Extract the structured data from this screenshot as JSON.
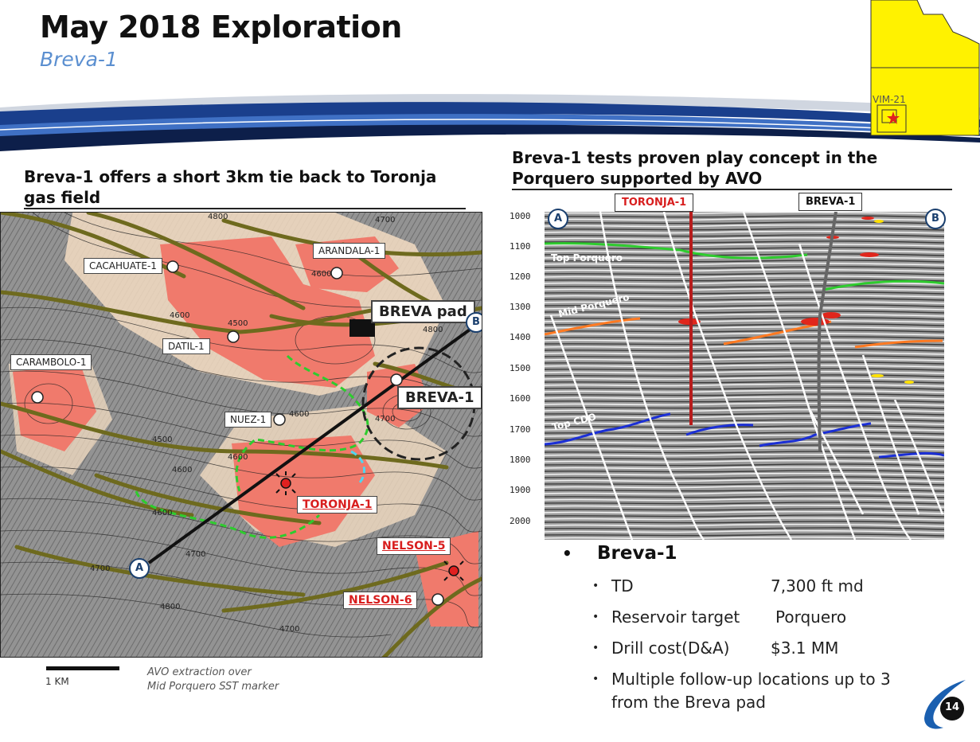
{
  "header": {
    "title": "May 2018 Exploration",
    "subtitle": "Breva-1"
  },
  "inset_map": {
    "block_label": "VIM-21",
    "fill_color": "#fff200"
  },
  "left_section": {
    "heading": "Breva-1 offers a short 3km tie back to Toronja gas field",
    "well_labels": {
      "cacahuate": "CACAHUATE-1",
      "arandala": "ARANDALA-1",
      "breva_pad": "BREVA pad",
      "datil": "DATIL-1",
      "carambolo": "CARAMBOLO-1",
      "nuez": "NUEZ-1",
      "breva": "BREVA-1",
      "toronja": "TORONJA-1",
      "nelson5": "NELSON-5",
      "nelson6": "NELSON-6"
    },
    "line_ends": {
      "a": "A",
      "b": "B"
    },
    "contour_labels": [
      "4800",
      "4700",
      "4600",
      "4500",
      "4600",
      "4800",
      "4700",
      "4600",
      "4500",
      "4600",
      "4600",
      "4700",
      "4600",
      "4700",
      "4800",
      "4700"
    ],
    "scale_label": "1 KM",
    "avo_note_line1": "AVO extraction over",
    "avo_note_line2": "Mid Porquero SST marker"
  },
  "right_section": {
    "heading": "Breva-1 tests proven play concept in the Porquero supported by AVO",
    "wells": {
      "toronja": "TORONJA-1",
      "breva": "BREVA-1"
    },
    "section_ends": {
      "a": "A",
      "b": "B"
    },
    "depth_ticks": [
      "1000",
      "1100",
      "1200",
      "1300",
      "1400",
      "1500",
      "1600",
      "1700",
      "1800",
      "1900",
      "2000"
    ],
    "horizons": {
      "top_porquero": "Top Porquero",
      "mid_porquero": "Mid Porquero",
      "top_cdo": "Top CDO"
    },
    "colors": {
      "top_porquero": "#2ecc2e",
      "mid_porquero": "#ff7a22",
      "top_cdo": "#1b2fd6",
      "toronja_well": "#b71c1c"
    }
  },
  "bullets": {
    "main": "Breva-1",
    "items": [
      {
        "key": "TD",
        "value": "7,300 ft md"
      },
      {
        "key": "Reservoir target",
        "value": "Porquero"
      },
      {
        "key": "Drill cost(D&A)",
        "value": "$3.1 MM"
      },
      {
        "key": "Multiple follow-up locations up to 3 from the Breva pad",
        "value": ""
      }
    ]
  },
  "footer": {
    "page_number": "14"
  }
}
